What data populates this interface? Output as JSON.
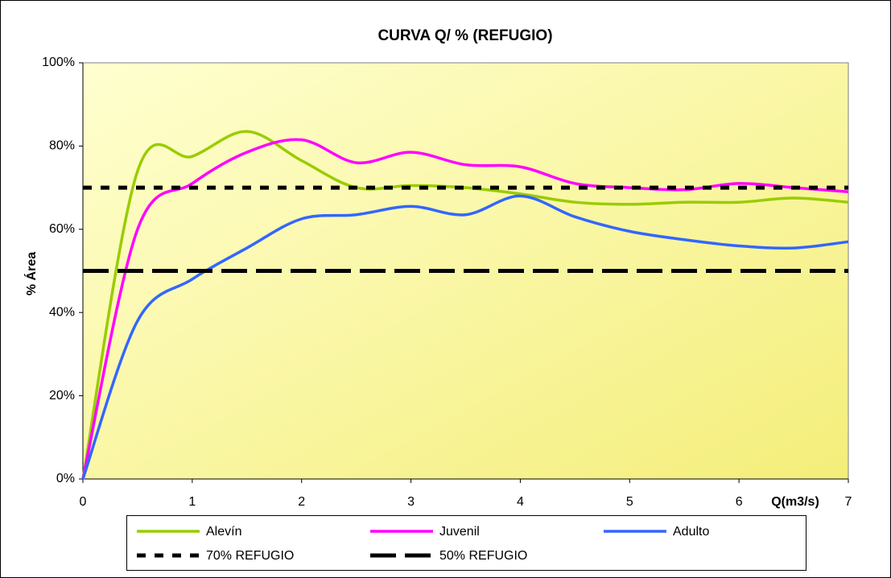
{
  "chart_data": {
    "type": "line",
    "title": "CURVA Q/ % (REFUGIO)",
    "x_label": "Q(m3/s)",
    "y_label": "% Área",
    "x": [
      0,
      0.5,
      1,
      1.5,
      2,
      2.5,
      3,
      3.5,
      4,
      4.5,
      5,
      5.5,
      6,
      6.5,
      7
    ],
    "series": [
      {
        "name": "Alevín",
        "color": "#99cc00",
        "style": "smooth",
        "values": [
          0,
          74,
          77.5,
          83.5,
          76.5,
          70,
          70.5,
          70,
          68.5,
          66.5,
          66,
          66.5,
          66.5,
          67.5,
          66.5
        ]
      },
      {
        "name": "Juvenil",
        "color": "#ff00ff",
        "style": "smooth",
        "values": [
          0,
          60,
          71,
          78.5,
          81.5,
          76,
          78.5,
          75.5,
          75,
          71,
          70,
          69.5,
          71,
          70,
          69
        ]
      },
      {
        "name": "Adulto",
        "color": "#3366ff",
        "style": "smooth",
        "values": [
          0,
          38,
          48,
          55.5,
          62.5,
          63.5,
          65.5,
          63.5,
          68,
          63,
          59.5,
          57.5,
          56,
          55.5,
          57
        ]
      },
      {
        "name": "70% REFUGIO",
        "color": "#000000",
        "style": "dashed",
        "values": [
          70,
          70,
          70,
          70,
          70,
          70,
          70,
          70,
          70,
          70,
          70,
          70,
          70,
          70,
          70
        ]
      },
      {
        "name": "50% REFUGIO",
        "color": "#000000",
        "style": "longdash",
        "values": [
          50,
          50,
          50,
          50,
          50,
          50,
          50,
          50,
          50,
          50,
          50,
          50,
          50,
          50,
          50
        ]
      }
    ],
    "xlim": [
      0,
      7
    ],
    "xticks": [
      0,
      1,
      2,
      3,
      4,
      5,
      6,
      7
    ],
    "ylim": [
      0,
      100
    ],
    "yticks": [
      {
        "value": 0,
        "label": "0%"
      },
      {
        "value": 20,
        "label": "20%"
      },
      {
        "value": 40,
        "label": "40%"
      },
      {
        "value": 60,
        "label": "60%"
      },
      {
        "value": 80,
        "label": "80%"
      },
      {
        "value": 100,
        "label": "100%"
      }
    ],
    "legend": "bottom"
  }
}
